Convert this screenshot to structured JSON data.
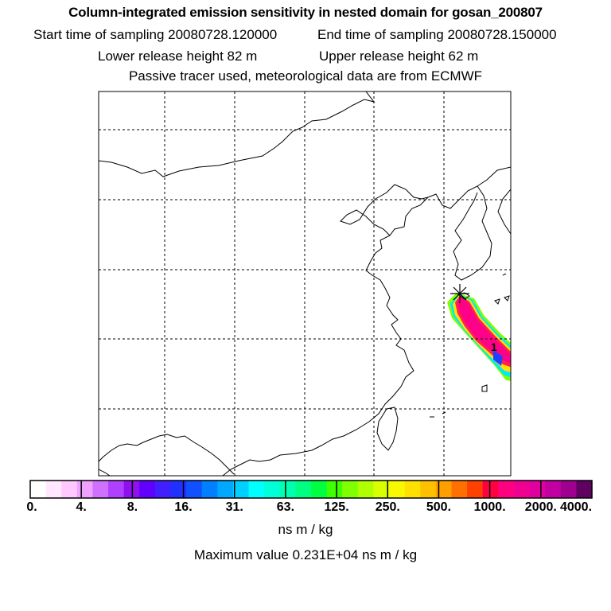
{
  "header": {
    "title": "Column-integrated emission sensitivity in nested domain for gosan_200807",
    "start_label": "Start time of sampling 20080728.120000",
    "end_label": "End time of sampling 20080728.150000",
    "lower_label": "Lower release height   82 m",
    "upper_label": "Upper release height   62 m",
    "info": "Passive tracer used, meteorological data are from ECMWF"
  },
  "map": {
    "release_marker_label": "1",
    "grid_style": "dashed",
    "colors": {
      "coast": "#000000",
      "grid": "#000000"
    }
  },
  "colorbar": {
    "ticks": [
      "0.",
      "4.",
      "8.",
      "16.",
      "31.",
      "63.",
      "125.",
      "250.",
      "500.",
      "1000.",
      "2000.",
      "4000."
    ],
    "colors": [
      "#ffffff",
      "#ffe8ff",
      "#ffc8ff",
      "#f0a0ff",
      "#d070ff",
      "#b040ff",
      "#9010f0",
      "#6000ff",
      "#4020ff",
      "#2030ff",
      "#1050ff",
      "#0080ff",
      "#00a8ff",
      "#00d0ff",
      "#00ffff",
      "#00ffd8",
      "#00ffb0",
      "#00ff80",
      "#00ff40",
      "#40ff00",
      "#80ff00",
      "#b0ff00",
      "#d8ff00",
      "#f8f800",
      "#ffe000",
      "#ffc000",
      "#ffa000",
      "#ff7000",
      "#ff4000",
      "#ff0040",
      "#ff0080",
      "#f00090",
      "#e000a0",
      "#c000a0",
      "#a00090",
      "#600060"
    ],
    "units": "ns m / kg",
    "max_value": "Maximum value  0.231E+04 ns m / kg"
  }
}
